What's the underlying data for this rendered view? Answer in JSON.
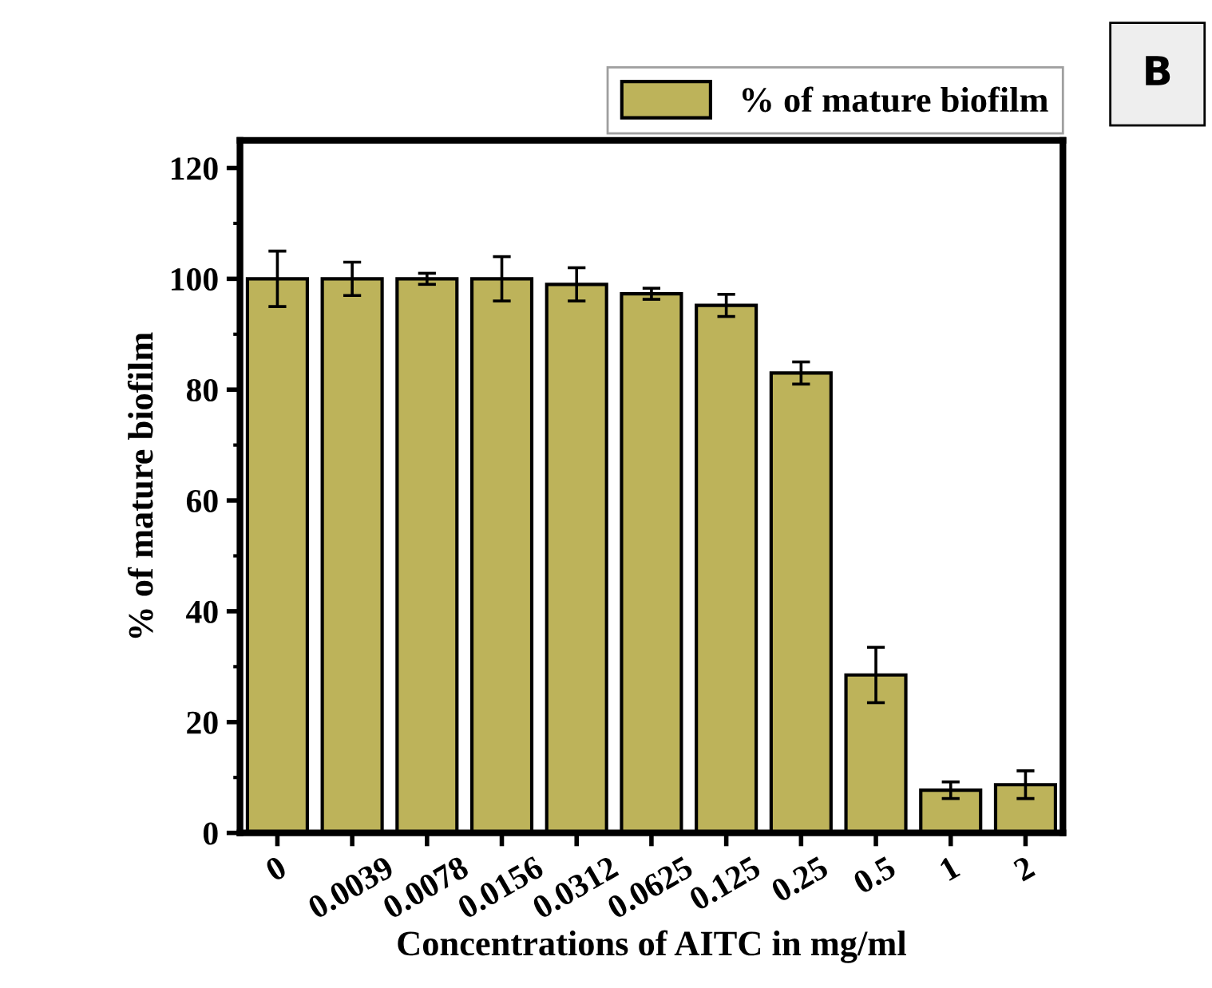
{
  "chart_data": {
    "type": "bar",
    "categories": [
      "0",
      "0.0039",
      "0.0078",
      "0.0156",
      "0.0312",
      "0.0625",
      "0.125",
      "0.25",
      "0.5",
      "1",
      "2"
    ],
    "series": [
      {
        "name": "% of mature biofilm",
        "color": "#bdb35a",
        "values": [
          100,
          100,
          100,
          100,
          99,
          97.3,
          95.2,
          83,
          28.5,
          7.7,
          8.7
        ],
        "errors": [
          5,
          3,
          1,
          4,
          3,
          1,
          2,
          2,
          5,
          1.5,
          2.5
        ]
      }
    ],
    "xlabel": "Concentrations of AITC in mg/ml",
    "ylabel": "% of mature biofilm",
    "ylim": [
      0,
      125
    ],
    "yticks": [
      0,
      20,
      40,
      60,
      80,
      100,
      120
    ],
    "annotations": [
      "B"
    ],
    "legend": "top right",
    "grid": false
  }
}
